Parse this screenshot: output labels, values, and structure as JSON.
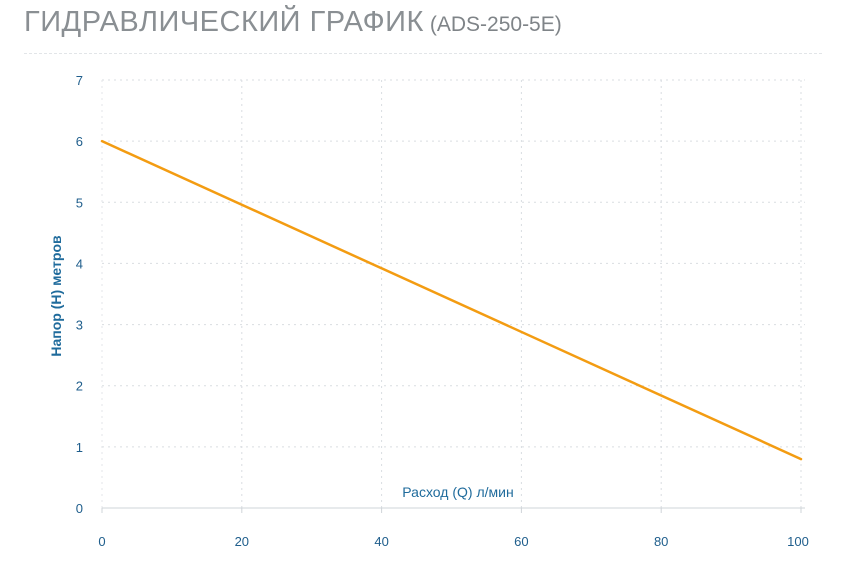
{
  "title": {
    "main": "ГИДРАВЛИЧЕСКИЙ ГРАФИК",
    "model": "(ADS-250-5E)"
  },
  "colors": {
    "line": "#f39c12",
    "ticks": "#1f5e8c",
    "axis_labels": "#1f6b9c",
    "grid": "#d9dde1",
    "title": "#8a8f93"
  },
  "chart_data": {
    "type": "line",
    "xlabel": "Расход (Q) л/мин",
    "ylabel": "Напор (Н) метров",
    "xlim": [
      0,
      100
    ],
    "ylim": [
      0,
      7
    ],
    "x_ticks": [
      0,
      20,
      40,
      60,
      80,
      100
    ],
    "y_ticks": [
      0,
      1,
      2,
      3,
      4,
      5,
      6,
      7
    ],
    "grid": true,
    "grid_style": "dotted",
    "series": [
      {
        "x": [
          0,
          100
        ],
        "y": [
          6,
          0.8
        ]
      }
    ]
  }
}
